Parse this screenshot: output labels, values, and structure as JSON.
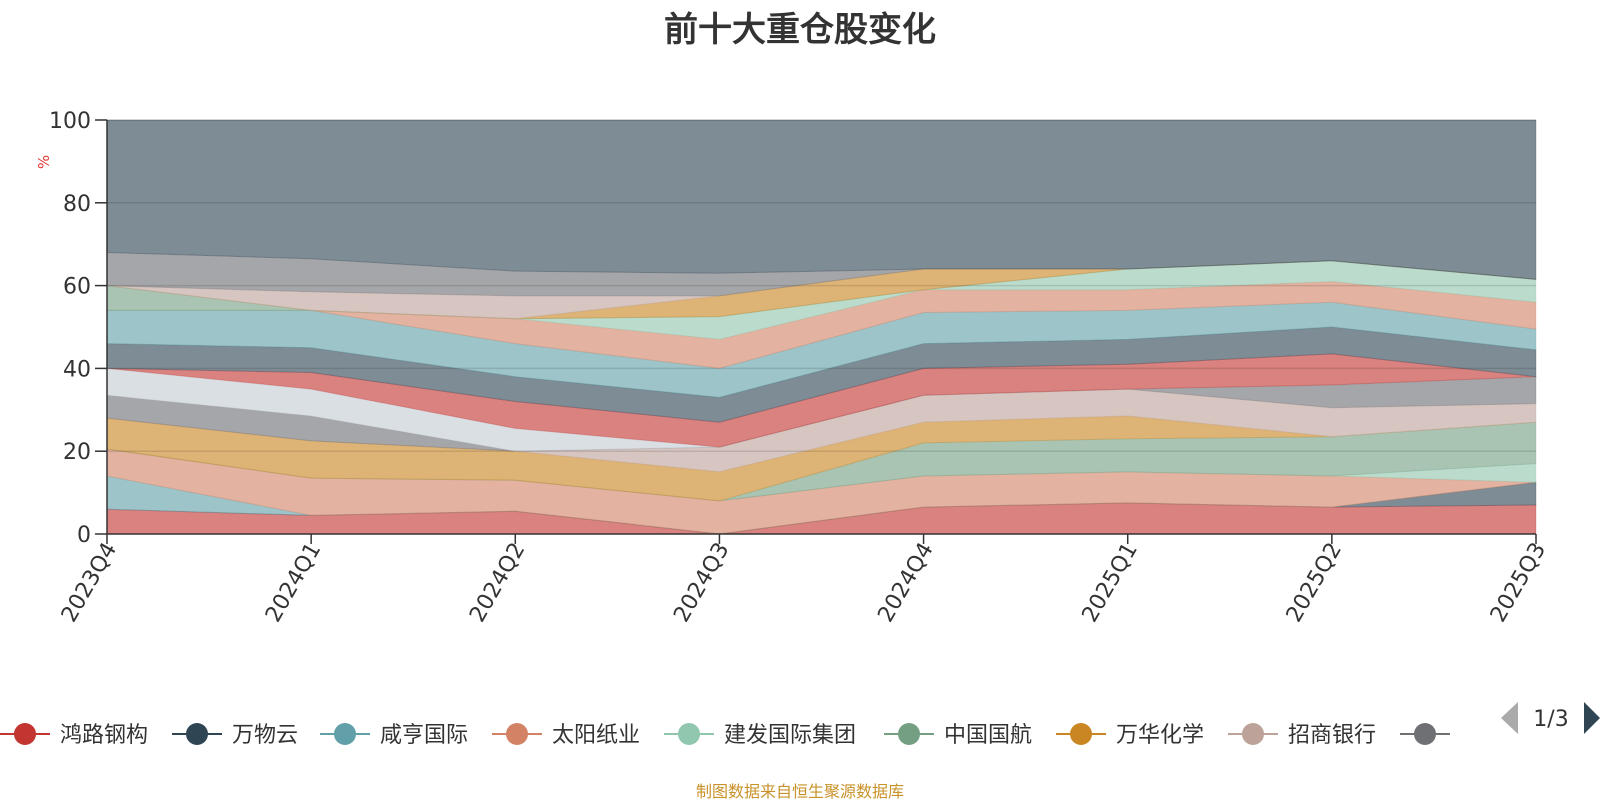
{
  "title": "前十大重仓股变化",
  "source_note": "制图数据来自恒生聚源数据库",
  "chart_data": {
    "type": "area",
    "stacked": true,
    "title": "前十大重仓股变化",
    "ylabel": "%",
    "ylim": [
      0,
      100
    ],
    "yticks": [
      0,
      20,
      40,
      60,
      80,
      100
    ],
    "categories": [
      "2023Q4",
      "2024Q1",
      "2024Q2",
      "2024Q3",
      "2024Q4",
      "2025Q1",
      "2025Q2",
      "2025Q3"
    ],
    "grid": true,
    "legend_position": "bottom",
    "legend_page": "1/3",
    "bands": [
      {
        "color": "#c23531",
        "upper": [
          6,
          4.5,
          5.5,
          0,
          6.5,
          7.5,
          6.5,
          7
        ]
      },
      {
        "color": "#2f4554",
        "upper": [
          6,
          4.5,
          5.5,
          0,
          6.5,
          7.5,
          6.5,
          12.5
        ]
      },
      {
        "color": "#61a0a8",
        "upper": [
          14,
          4.5,
          5.5,
          0,
          6.5,
          7.5,
          6.5,
          12.5
        ]
      },
      {
        "color": "#d48265",
        "upper": [
          20.5,
          13.5,
          13,
          8,
          14,
          15,
          14,
          12.5
        ]
      },
      {
        "color": "#91c7ae",
        "upper": [
          20.5,
          13.5,
          13,
          8,
          14,
          15,
          14,
          17
        ]
      },
      {
        "color": "#749f83",
        "upper": [
          20.5,
          13.5,
          13,
          8,
          22,
          23,
          23.5,
          27
        ]
      },
      {
        "color": "#ca8622",
        "upper": [
          28,
          22.5,
          20,
          15,
          27,
          28.5,
          23.5,
          27
        ]
      },
      {
        "color": "#bda29a",
        "upper": [
          28,
          22.5,
          20,
          21,
          33.5,
          35,
          30.5,
          31.5
        ]
      },
      {
        "color": "#6e7074",
        "upper": [
          33.5,
          28.5,
          20,
          21,
          33.5,
          35,
          36,
          38
        ]
      },
      {
        "color": "#c4ccd3",
        "upper": [
          40,
          35,
          25.5,
          21,
          33.5,
          35,
          36,
          38
        ]
      },
      {
        "color": "#c23531",
        "upper": [
          40,
          39,
          32,
          27,
          40,
          41,
          43.5,
          38
        ]
      },
      {
        "color": "#2f4554",
        "upper": [
          46,
          45,
          38,
          33,
          46,
          47,
          50,
          44.5
        ]
      },
      {
        "color": "#61a0a8",
        "upper": [
          54,
          54,
          46,
          40,
          53.5,
          54,
          56,
          49.5
        ]
      },
      {
        "color": "#d48265",
        "upper": [
          54,
          54,
          52,
          47,
          59,
          59,
          61,
          56
        ]
      },
      {
        "color": "#91c7ae",
        "upper": [
          54,
          54,
          52,
          52.5,
          59,
          64,
          66,
          61.5
        ]
      },
      {
        "color": "#749f83",
        "upper": [
          60,
          54,
          52,
          52.5,
          59,
          64,
          66,
          61.5
        ]
      },
      {
        "color": "#ca8622",
        "upper": [
          60,
          54,
          52,
          57.5,
          64,
          64,
          66,
          61.5
        ]
      },
      {
        "color": "#bda29a",
        "upper": [
          60,
          58.5,
          57.5,
          57.5,
          64,
          64,
          66,
          61.5
        ]
      },
      {
        "color": "#6e7074",
        "upper": [
          68,
          66.5,
          63.5,
          63,
          64,
          64,
          66,
          61.5
        ]
      },
      {
        "color": "#2f4554",
        "upper": [
          100,
          100,
          100,
          100,
          100,
          100,
          100,
          100
        ]
      }
    ],
    "legend": [
      {
        "name": "鸿路钢构",
        "color": "#c23531"
      },
      {
        "name": "万物云",
        "color": "#2f4554"
      },
      {
        "name": "咸亨国际",
        "color": "#61a0a8"
      },
      {
        "name": "太阳纸业",
        "color": "#d48265"
      },
      {
        "name": "建发国际集团",
        "color": "#91c7ae"
      },
      {
        "name": "中国国航",
        "color": "#749f83"
      },
      {
        "name": "万华化学",
        "color": "#ca8622"
      },
      {
        "name": "招商银行",
        "color": "#bda29a"
      },
      {
        "name": "",
        "color": "#6e7074"
      }
    ]
  }
}
